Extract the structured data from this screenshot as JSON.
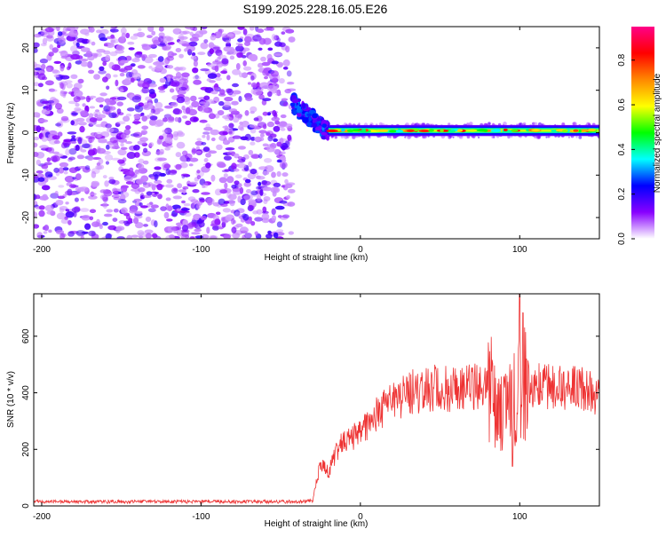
{
  "title": "S199.2025.228.16.05.E26",
  "chart_data": [
    {
      "type": "heatmap",
      "title": "S199.2025.228.16.05.E26",
      "xlabel": "Height of straight line (km)",
      "ylabel": "Frequency (Hz)",
      "xlim": [
        -205,
        150
      ],
      "ylim": [
        -25,
        25
      ],
      "xticks": [
        -200,
        -100,
        0,
        100
      ],
      "yticks": [
        -20,
        -10,
        0,
        10,
        20
      ],
      "tick_labels": {
        "x": [
          "-200",
          "-100",
          "0",
          "100"
        ],
        "y": [
          "-20",
          "-10",
          "0",
          "10",
          "20"
        ]
      },
      "noise_region_x": [
        -205,
        -43
      ],
      "transition": {
        "x": [
          -43,
          -20
        ],
        "freq": [
          7,
          0
        ]
      },
      "band": {
        "x_start": -20,
        "x_end": 150,
        "freq": 0.5,
        "width_hz": 1.5,
        "peak_amplitude": 0.9
      },
      "colorbar": {
        "label": "Normalized spectral amplitude",
        "range": [
          0,
          0.95
        ],
        "ticks": [
          0.0,
          0.2,
          0.4,
          0.6,
          0.8
        ],
        "tick_labels": [
          "0.0",
          "0.2",
          "0.4",
          "0.6",
          "0.8"
        ],
        "colors": [
          "#ffffff",
          "#8800ff",
          "#0000ff",
          "#00ffff",
          "#00ff00",
          "#ffff00",
          "#ff8800",
          "#ff0000",
          "#ff0088"
        ]
      }
    },
    {
      "type": "line",
      "xlabel": "Height of straight line (km)",
      "ylabel": "SNR (10 * v/v)",
      "xlim": [
        -205,
        150
      ],
      "ylim": [
        0,
        750
      ],
      "xticks": [
        -200,
        -100,
        0,
        100
      ],
      "yticks": [
        0,
        200,
        400,
        600
      ],
      "tick_labels": {
        "x": [
          "-200",
          "-100",
          "0",
          "100"
        ],
        "y": [
          "0",
          "200",
          "400",
          "600"
        ]
      },
      "color": "#ee3333",
      "series": [
        {
          "name": "SNR",
          "x": [
            -205,
            -180,
            -150,
            -120,
            -90,
            -60,
            -40,
            -30,
            -25,
            -20,
            -15,
            -10,
            -5,
            0,
            5,
            10,
            20,
            30,
            40,
            50,
            60,
            70,
            80,
            85,
            90,
            95,
            100,
            105,
            110,
            120,
            130,
            140,
            150
          ],
          "y": [
            15,
            15,
            15,
            15,
            15,
            15,
            15,
            18,
            150,
            120,
            190,
            230,
            240,
            260,
            290,
            320,
            370,
            400,
            410,
            420,
            405,
            420,
            440,
            360,
            370,
            330,
            470,
            440,
            420,
            425,
            415,
            410,
            380
          ]
        }
      ]
    }
  ]
}
